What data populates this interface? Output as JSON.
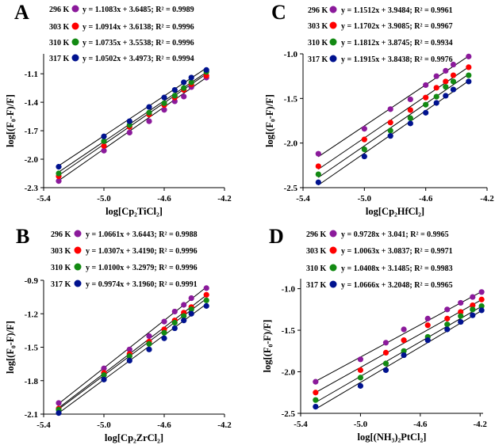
{
  "chart_data": [
    {
      "panel_label": "A",
      "type": "scatter",
      "xlabel": "log[Cp₂TiCl₂]",
      "ylabel": "log[(F₀-F)/F]",
      "xlim": [
        -5.4,
        -4.2
      ],
      "ylim": [
        -2.3,
        -0.89
      ],
      "xticks": [
        -5.4,
        -5.0,
        -4.6,
        -4.2
      ],
      "xtick_labels": [
        "-5.4",
        "-5.0",
        "-4.6",
        "-4.2"
      ],
      "yticks": [
        -2.3,
        -2.0,
        -1.7,
        -1.4,
        -1.1
      ],
      "ytick_labels": [
        "-2.3",
        "-2.0",
        "-1.7",
        "-1.4",
        "-1.1"
      ],
      "x": [
        -5.3,
        -5.0,
        -4.83,
        -4.7,
        -4.6,
        -4.53,
        -4.47,
        -4.42,
        -4.32
      ],
      "series": [
        {
          "name": "296 K",
          "color": "#8B1A9B",
          "equation": "y = 1.1083x + 3.6485; R² = 0.9989",
          "slope": 1.1083,
          "intercept": 3.6485,
          "values": [
            -2.23,
            -1.91,
            -1.72,
            -1.6,
            -1.48,
            -1.39,
            -1.34,
            -1.24,
            -1.14
          ]
        },
        {
          "name": "303 K",
          "color": "#FF0000",
          "equation": "y = 1.0914x + 3.6138; R² = 0.9996",
          "slope": 1.0914,
          "intercept": 3.6138,
          "values": [
            -2.18,
            -1.86,
            -1.66,
            -1.53,
            -1.43,
            -1.35,
            -1.27,
            -1.21,
            -1.12
          ]
        },
        {
          "name": "310 K",
          "color": "#138A13",
          "equation": "y = 1.0735x + 3.5538; R² = 0.9996",
          "slope": 1.0735,
          "intercept": 3.5538,
          "values": [
            -2.15,
            -1.81,
            -1.64,
            -1.51,
            -1.41,
            -1.33,
            -1.25,
            -1.19,
            -1.08
          ]
        },
        {
          "name": "317 K",
          "color": "#00128F",
          "equation": "y = 1.0502x + 3.4973; R² = 0.9994",
          "slope": 1.0502,
          "intercept": 3.4973,
          "values": [
            -2.08,
            -1.76,
            -1.6,
            -1.45,
            -1.35,
            -1.27,
            -1.19,
            -1.14,
            -1.06
          ]
        }
      ]
    },
    {
      "panel_label": "C",
      "type": "scatter",
      "xlabel": "log[Cp₂HfCl₂]",
      "ylabel": "log[(F₀-F)/F]",
      "xlim": [
        -5.4,
        -4.2
      ],
      "ylim": [
        -2.5,
        -1.0
      ],
      "xticks": [
        -5.4,
        -5.0,
        -4.6,
        -4.2
      ],
      "xtick_labels": [
        "-5.4",
        "-5.0",
        "-4.6",
        "-4.2"
      ],
      "yticks": [
        -2.5,
        -2.0,
        -1.5,
        -1.0
      ],
      "ytick_labels": [
        "-2.5",
        "-2.0",
        "-1.5",
        "-1.0"
      ],
      "x": [
        -5.3,
        -5.0,
        -4.83,
        -4.7,
        -4.6,
        -4.53,
        -4.47,
        -4.42,
        -4.32
      ],
      "series": [
        {
          "name": "296 K",
          "color": "#8B1A9B",
          "equation": "y = 1.1512x + 3.9484; R² = 0.9961",
          "slope": 1.1512,
          "intercept": 3.9484,
          "values": [
            -2.12,
            -1.84,
            -1.62,
            -1.51,
            -1.35,
            -1.25,
            -1.19,
            -1.12,
            -1.03
          ]
        },
        {
          "name": "303 K",
          "color": "#FF0000",
          "equation": "y = 1.1702x + 3.9085; R² = 0.9967",
          "slope": 1.1702,
          "intercept": 3.9085,
          "values": [
            -2.26,
            -1.96,
            -1.77,
            -1.63,
            -1.49,
            -1.38,
            -1.31,
            -1.24,
            -1.15
          ]
        },
        {
          "name": "310 K",
          "color": "#138A13",
          "equation": "y = 1.1812x + 3.8745; R² = 0.9934",
          "slope": 1.1812,
          "intercept": 3.8745,
          "values": [
            -2.35,
            -2.07,
            -1.86,
            -1.72,
            -1.57,
            -1.48,
            -1.37,
            -1.31,
            -1.24
          ]
        },
        {
          "name": "317 K",
          "color": "#00128F",
          "equation": "y = 1.1915x + 3.8438; R² = 0.9976",
          "slope": 1.1915,
          "intercept": 3.8438,
          "values": [
            -2.44,
            -2.15,
            -1.92,
            -1.78,
            -1.66,
            -1.55,
            -1.47,
            -1.4,
            -1.31
          ]
        }
      ]
    },
    {
      "panel_label": "B",
      "type": "scatter",
      "xlabel": "log[Cp₂ZrCl₂]",
      "ylabel": "log[(F₀-F)/F]",
      "xlim": [
        -5.4,
        -4.2
      ],
      "ylim": [
        -2.1,
        -0.9
      ],
      "xticks": [
        -5.4,
        -5.0,
        -4.6,
        -4.2
      ],
      "xtick_labels": [
        "-5.4",
        "-5.0",
        "-4.6",
        "-4.2"
      ],
      "yticks": [
        -2.1,
        -1.8,
        -1.5,
        -1.2,
        -0.9
      ],
      "ytick_labels": [
        "-2.1",
        "-1.8",
        "-1.5",
        "-1.2",
        "-0.9"
      ],
      "x": [
        -5.3,
        -5.0,
        -4.83,
        -4.7,
        -4.6,
        -4.53,
        -4.47,
        -4.42,
        -4.32
      ],
      "series": [
        {
          "name": "296 K",
          "color": "#8B1A9B",
          "equation": "y = 1.0661x + 3.6443; R² = 0.9988",
          "slope": 1.0661,
          "intercept": 3.6443,
          "values": [
            -2.0,
            -1.69,
            -1.52,
            -1.4,
            -1.27,
            -1.18,
            -1.12,
            -1.06,
            -0.97
          ]
        },
        {
          "name": "303 K",
          "color": "#FF0000",
          "equation": "y = 1.0307x + 3.4190; R² = 0.9996",
          "slope": 1.0307,
          "intercept": 3.419,
          "values": [
            -2.05,
            -1.73,
            -1.56,
            -1.45,
            -1.34,
            -1.26,
            -1.19,
            -1.14,
            -1.03
          ]
        },
        {
          "name": "310 K",
          "color": "#138A13",
          "equation": "y = 1.0100x + 3.2979; R² = 0.9996",
          "slope": 1.01,
          "intercept": 3.2979,
          "values": [
            -2.06,
            -1.75,
            -1.58,
            -1.47,
            -1.37,
            -1.28,
            -1.22,
            -1.16,
            -1.08
          ]
        },
        {
          "name": "317 K",
          "color": "#00128F",
          "equation": "y = 0.9974x + 3.1960; R² = 0.9991",
          "slope": 0.9974,
          "intercept": 3.196,
          "values": [
            -2.09,
            -1.79,
            -1.62,
            -1.52,
            -1.42,
            -1.33,
            -1.26,
            -1.2,
            -1.13
          ]
        }
      ]
    },
    {
      "panel_label": "D",
      "type": "scatter",
      "xlabel": "log[(NH₃)₂PtCl₂]",
      "ylabel": "log[(F₀-F)/F]",
      "xlim": [
        -5.4,
        -4.18
      ],
      "ylim": [
        -2.5,
        -0.88
      ],
      "xticks": [
        -5.4,
        -5.0,
        -4.6,
        -4.2
      ],
      "xtick_labels": [
        "-5.4",
        "-5.0",
        "-4.6",
        "-4.2"
      ],
      "yticks": [
        -2.5,
        -2.0,
        -1.5,
        -1.0
      ],
      "ytick_labels": [
        "-2.5",
        "-2.0",
        "-1.5",
        "-1.0"
      ],
      "x": [
        -5.3,
        -5.0,
        -4.83,
        -4.71,
        -4.55,
        -4.42,
        -4.33,
        -4.25,
        -4.19
      ],
      "series": [
        {
          "name": "296 K",
          "color": "#8B1A9B",
          "equation": "y = 0.9728x + 3.041; R² = 0.9965",
          "slope": 0.9728,
          "intercept": 3.041,
          "values": [
            -2.12,
            -1.85,
            -1.65,
            -1.49,
            -1.36,
            -1.25,
            -1.17,
            -1.1,
            -1.04
          ]
        },
        {
          "name": "303 K",
          "color": "#FF0000",
          "equation": "y = 1.0063x + 3.0837; R² = 0.9971",
          "slope": 1.0063,
          "intercept": 3.0837,
          "values": [
            -2.25,
            -1.98,
            -1.77,
            -1.62,
            -1.44,
            -1.36,
            -1.28,
            -1.2,
            -1.13
          ]
        },
        {
          "name": "310 K",
          "color": "#138A13",
          "equation": "y = 1.0408x + 3.1485; R² = 0.9983",
          "slope": 1.0408,
          "intercept": 3.1485,
          "values": [
            -2.34,
            -2.07,
            -1.9,
            -1.75,
            -1.58,
            -1.43,
            -1.33,
            -1.25,
            -1.21
          ]
        },
        {
          "name": "317 K",
          "color": "#00128F",
          "equation": "y = 1.0666x + 3.2048; R² = 0.9965",
          "slope": 1.0666,
          "intercept": 3.2048,
          "values": [
            -2.42,
            -2.17,
            -1.98,
            -1.8,
            -1.62,
            -1.49,
            -1.4,
            -1.32,
            -1.26
          ]
        }
      ]
    }
  ]
}
